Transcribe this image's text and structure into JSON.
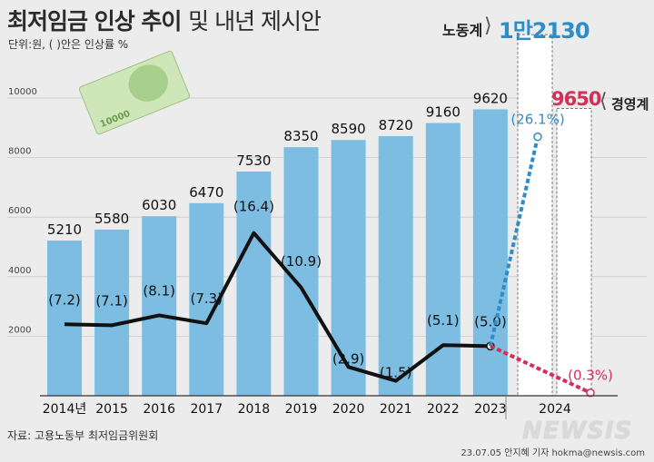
{
  "title_main": "최저임금 인상 추이",
  "title_sub": "및 내년 제시안",
  "unit_note": "단위:원, ( )안은 인상률 %",
  "source": "자료: 고용노동부 최저임금위원회",
  "credit": "23.07.05 안지혜 기자 hokma@newsis.com",
  "logo": "NEWSIS",
  "banknote_text": "10000",
  "proposals": {
    "labor": {
      "label": "노동계",
      "value_text": "1만2130",
      "rate_text": "(26.1%)",
      "value": 12130,
      "rate": 26.1,
      "color": "#2e8cc9"
    },
    "management": {
      "label": "경영계",
      "value_text": "9650",
      "rate_text": "(0.3%)",
      "value": 9650,
      "rate": 0.3,
      "color": "#d32f57"
    }
  },
  "chart_data": {
    "type": "bar",
    "categories": [
      "2014년",
      "2015",
      "2016",
      "2017",
      "2018",
      "2019",
      "2020",
      "2021",
      "2022",
      "2023"
    ],
    "x_extra_label": "2024",
    "series": [
      {
        "name": "최저임금",
        "type": "bar",
        "values": [
          5210,
          5580,
          6030,
          6470,
          7530,
          8350,
          8590,
          8720,
          9160,
          9620
        ]
      },
      {
        "name": "인상률",
        "type": "line",
        "values": [
          7.2,
          7.1,
          8.1,
          7.3,
          16.4,
          10.9,
          2.9,
          1.5,
          5.1,
          5.0
        ]
      }
    ],
    "value_labels": [
      "5210",
      "5580",
      "6030",
      "6470",
      "7530",
      "8350",
      "8590",
      "8720",
      "9160",
      "9620"
    ],
    "rate_labels": [
      "(7.2)",
      "(7.1)",
      "(8.1)",
      "(7.3)",
      "(16.4)",
      "(10.9)",
      "(2.9)",
      "(1.5)",
      "(5.1)",
      "(5.0)"
    ],
    "yticks": [
      "2000",
      "4000",
      "6000",
      "8000",
      "10000"
    ],
    "ylim": [
      0,
      10000
    ],
    "rate_ylim": [
      0,
      30
    ],
    "grid": true,
    "bar_color": "#7dbde2",
    "line_color": "#111111"
  }
}
